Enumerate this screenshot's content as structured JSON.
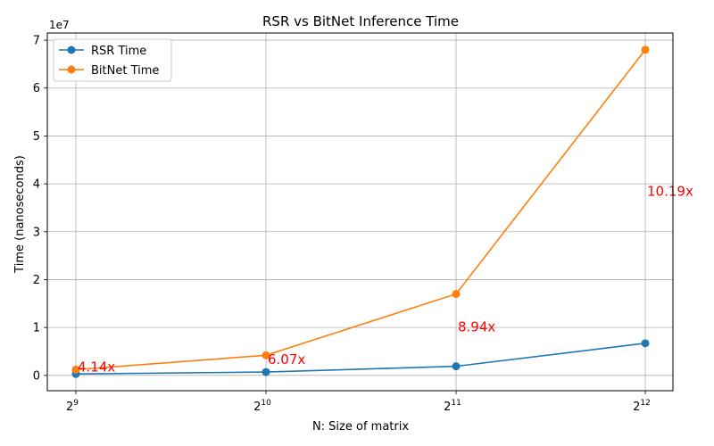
{
  "chart_data": {
    "type": "line",
    "title": "RSR vs BitNet Inference Time",
    "xlabel": "N: Size of matrix",
    "ylabel": "Time (nanoseconds)",
    "y_offset_label": "1e7",
    "x_scale": "log2",
    "x": [
      512,
      1024,
      2048,
      4096
    ],
    "x_tick_bases": [
      "2",
      "2",
      "2",
      "2"
    ],
    "x_tick_exponents": [
      "9",
      "10",
      "11",
      "12"
    ],
    "y_ticks": [
      "0",
      "1",
      "2",
      "3",
      "4",
      "5",
      "6",
      "7"
    ],
    "y_tick_values": [
      0,
      10000000,
      20000000,
      30000000,
      40000000,
      50000000,
      60000000,
      70000000
    ],
    "ylim": [
      -3200000,
      71500000
    ],
    "grid": true,
    "legend_position": "top-left",
    "series": [
      {
        "name": "RSR Time",
        "color": "#1f77b4",
        "values": [
          300000,
          700000,
          1900000,
          6700000
        ]
      },
      {
        "name": "BitNet Time",
        "color": "#ff7f0e",
        "values": [
          1200000,
          4200000,
          17000000,
          68000000
        ]
      }
    ],
    "annotations": [
      {
        "text": "4.14x",
        "x": 512,
        "y": 1800000,
        "color": "#ff0000"
      },
      {
        "text": "6.07x",
        "x": 1024,
        "y": 3400000,
        "color": "#ff0000"
      },
      {
        "text": "8.94x",
        "x": 2048,
        "y": 10200000,
        "color": "#ff0000"
      },
      {
        "text": "10.19x",
        "x": 4096,
        "y": 38500000,
        "color": "#ff0000"
      }
    ]
  }
}
